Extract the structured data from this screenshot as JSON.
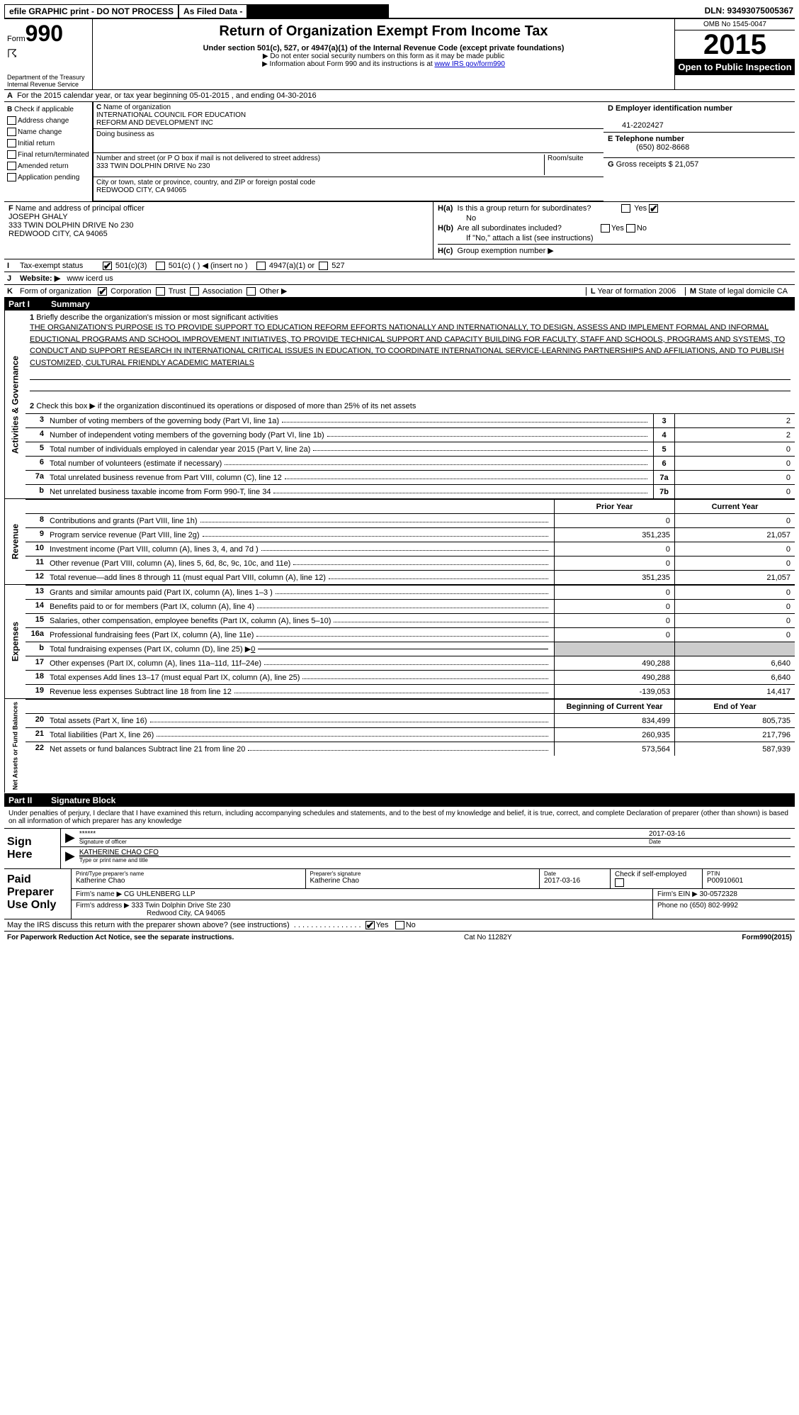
{
  "top": {
    "efile": "efile GRAPHIC print - DO NOT PROCESS",
    "asfiled": "As Filed Data -",
    "dln": "DLN: 93493075005367"
  },
  "header": {
    "form_prefix": "Form",
    "form_num": "990",
    "dept": "Department of the Treasury",
    "irs": "Internal Revenue Service",
    "title": "Return of Organization Exempt From Income Tax",
    "subtitle": "Under section 501(c), 527, or 4947(a)(1) of the Internal Revenue Code (except private foundations)",
    "note1": "▶ Do not enter social security numbers on this form as it may be made public",
    "note2": "▶ Information about Form 990 and its instructions is at ",
    "note2_link": "www IRS gov/form990",
    "omb": "OMB No 1545-0047",
    "year": "2015",
    "open": "Open to Public Inspection"
  },
  "rowA": {
    "prefix": "A",
    "text": "For the 2015 calendar year, or tax year beginning 05-01-2015     , and ending 04-30-2016"
  },
  "colB": {
    "label": "B",
    "check": "Check if applicable",
    "addr": "Address change",
    "name": "Name change",
    "initial": "Initial return",
    "final": "Final return/terminated",
    "amended": "Amended return",
    "pending": "Application pending"
  },
  "colC": {
    "c_label": "C",
    "name_label": "Name of organization",
    "name1": "INTERNATIONAL COUNCIL FOR EDUCATION",
    "name2": "REFORM AND DEVELOPMENT INC",
    "dba_label": "Doing business as",
    "addr_label": "Number and street (or P O  box if mail is not delivered to street address)",
    "room_label": "Room/suite",
    "addr": "333 TWIN DOLPHIN DRIVE No 230",
    "city_label": "City or town, state or province, country, and ZIP or foreign postal code",
    "city": "REDWOOD CITY, CA  94065"
  },
  "colD": {
    "d_label": "D Employer identification number",
    "ein": "41-2202427",
    "e_label": "E Telephone number",
    "phone": "(650) 802-8668",
    "g_label": "G",
    "g_text": "Gross receipts $ 21,057"
  },
  "colF": {
    "label": "F",
    "text": "Name and address of principal officer",
    "name": "JOSEPH GHALY",
    "addr1": "333 TWIN DOLPHIN DRIVE No 230",
    "addr2": "REDWOOD CITY, CA  94065"
  },
  "colH": {
    "ha": "H(a)",
    "ha_text": "Is this a group return for subordinates?",
    "ha_no": "No",
    "hb": "H(b)",
    "hb_text": "Are all subordinates included?",
    "hb_note": "If \"No,\" attach a list  (see instructions)",
    "hc": "H(c)",
    "hc_text": "Group exemption number ▶",
    "yes": "Yes",
    "no": "No"
  },
  "rowI": {
    "label": "I",
    "text": "Tax-exempt status",
    "opt1": "501(c)(3)",
    "opt2": "501(c) (   ) ◀ (insert no )",
    "opt3": "4947(a)(1) or",
    "opt4": "527"
  },
  "rowJ": {
    "label": "J",
    "text": "Website: ▶",
    "val": "www icerd us"
  },
  "rowK": {
    "label": "K",
    "text": "Form of organization",
    "corp": "Corporation",
    "trust": "Trust",
    "assoc": "Association",
    "other": "Other ▶",
    "l_label": "L",
    "l_text": "Year of formation  2006",
    "m_label": "M",
    "m_text": "State of legal domicile  CA"
  },
  "part1": {
    "num": "Part I",
    "title": "Summary"
  },
  "activities": {
    "vtab": "Activities & Governance",
    "line1_label": "1",
    "line1_text": "Briefly describe the organization's mission or most significant activities",
    "mission": "THE ORGANIZATION'S PURPOSE IS TO PROVIDE SUPPORT TO EDUCATION REFORM EFFORTS NATIONALLY AND INTERNATIONALLY, TO DESIGN, ASSESS AND IMPLEMENT FORMAL AND INFORMAL EDUCTIONAL PROGRAMS AND SCHOOL IMPROVEMENT INITIATIVES, TO PROVIDE TECHNICAL SUPPORT AND CAPACITY BUILDING FOR FACULTY, STAFF AND SCHOOLS, PROGRAMS AND SYSTEMS, TO CONDUCT AND SUPPORT RESEARCH IN INTERNATIONAL CRITICAL ISSUES IN EDUCATION, TO COORDINATE INTERNATIONAL SERVICE-LEARNING PARTNERSHIPS AND AFFILIATIONS, AND TO PUBLISH CUSTOMIZED, CULTURAL FRIENDLY ACADEMIC MATERIALS",
    "line2_label": "2",
    "line2_text": "Check this box ▶     if the organization discontinued its operations or disposed of more than 25% of its net assets",
    "rows": [
      {
        "n": "3",
        "desc": "Number of voting members of the governing body (Part VI, line 1a)",
        "key": "3",
        "val": "2"
      },
      {
        "n": "4",
        "desc": "Number of independent voting members of the governing body (Part VI, line 1b)",
        "key": "4",
        "val": "2"
      },
      {
        "n": "5",
        "desc": "Total number of individuals employed in calendar year 2015 (Part V, line 2a)",
        "key": "5",
        "val": "0"
      },
      {
        "n": "6",
        "desc": "Total number of volunteers (estimate if necessary)",
        "key": "6",
        "val": "0"
      },
      {
        "n": "7a",
        "desc": "Total unrelated business revenue from Part VIII, column (C), line 12",
        "key": "7a",
        "val": "0"
      },
      {
        "n": "b",
        "desc": "Net unrelated business taxable income from Form 990-T, line 34",
        "key": "7b",
        "val": "0"
      }
    ]
  },
  "revenue": {
    "vtab": "Revenue",
    "header_prior": "Prior Year",
    "header_current": "Current Year",
    "rows": [
      {
        "n": "8",
        "desc": "Contributions and grants (Part VIII, line 1h)",
        "prior": "0",
        "curr": "0"
      },
      {
        "n": "9",
        "desc": "Program service revenue (Part VIII, line 2g)",
        "prior": "351,235",
        "curr": "21,057"
      },
      {
        "n": "10",
        "desc": "Investment income (Part VIII, column (A), lines 3, 4, and 7d )",
        "prior": "0",
        "curr": "0"
      },
      {
        "n": "11",
        "desc": "Other revenue (Part VIII, column (A), lines 5, 6d, 8c, 9c, 10c, and 11e)",
        "prior": "0",
        "curr": "0"
      },
      {
        "n": "12",
        "desc": "Total revenue—add lines 8 through 11 (must equal Part VIII, column (A), line 12)",
        "prior": "351,235",
        "curr": "21,057"
      }
    ]
  },
  "expenses": {
    "vtab": "Expenses",
    "rows": [
      {
        "n": "13",
        "desc": "Grants and similar amounts paid (Part IX, column (A), lines 1–3 )",
        "prior": "0",
        "curr": "0"
      },
      {
        "n": "14",
        "desc": "Benefits paid to or for members (Part IX, column (A), line 4)",
        "prior": "0",
        "curr": "0"
      },
      {
        "n": "15",
        "desc": "Salaries, other compensation, employee benefits (Part IX, column (A), lines 5–10)",
        "prior": "0",
        "curr": "0"
      },
      {
        "n": "16a",
        "desc": "Professional fundraising fees (Part IX, column (A), line 11e)",
        "prior": "0",
        "curr": "0"
      }
    ],
    "row_b": {
      "n": "b",
      "desc": "Total fundraising expenses (Part IX, column (D), line 25) ▶",
      "val": "0"
    },
    "rows2": [
      {
        "n": "17",
        "desc": "Other expenses (Part IX, column (A), lines 11a–11d, 11f–24e)",
        "prior": "490,288",
        "curr": "6,640"
      },
      {
        "n": "18",
        "desc": "Total expenses  Add lines 13–17 (must equal Part IX, column (A), line 25)",
        "prior": "490,288",
        "curr": "6,640"
      },
      {
        "n": "19",
        "desc": "Revenue less expenses  Subtract line 18 from line 12",
        "prior": "-139,053",
        "curr": "14,417"
      }
    ]
  },
  "netassets": {
    "vtab": "Net Assets or Fund Balances",
    "header_begin": "Beginning of Current Year",
    "header_end": "End of Year",
    "rows": [
      {
        "n": "20",
        "desc": "Total assets (Part X, line 16)",
        "prior": "834,499",
        "curr": "805,735"
      },
      {
        "n": "21",
        "desc": "Total liabilities (Part X, line 26)",
        "prior": "260,935",
        "curr": "217,796"
      },
      {
        "n": "22",
        "desc": "Net assets or fund balances  Subtract line 21 from line 20",
        "prior": "573,564",
        "curr": "587,939"
      }
    ]
  },
  "part2": {
    "num": "Part II",
    "title": "Signature Block"
  },
  "sig": {
    "perjury": "Under penalties of perjury, I declare that I have examined this return, including accompanying schedules and statements, and to the best of my knowledge and belief, it is true, correct, and complete  Declaration of preparer (other than shown) is based on all information of which preparer has any knowledge",
    "sign_here": "Sign Here",
    "stars": "******",
    "sig_label": "Signature of officer",
    "date": "2017-03-16",
    "date_label": "Date",
    "name": "KATHERINE CHAO CFO",
    "name_label": "Type or print name and title"
  },
  "preparer": {
    "label": "Paid Preparer Use Only",
    "name_lbl": "Print/Type preparer's name",
    "name": "Katherine Chao",
    "sig_lbl": "Preparer's signature",
    "sig": "Katherine Chao",
    "date_lbl": "Date",
    "date": "2017-03-16",
    "check_lbl": "Check         if self-employed",
    "ptin_lbl": "PTIN",
    "ptin": "P00910601",
    "firm_lbl": "Firm's name      ▶",
    "firm": "CG UHLENBERG LLP",
    "ein_lbl": "Firm's EIN ▶",
    "ein": "30-0572328",
    "addr_lbl": "Firm's address ▶",
    "addr1": "333 Twin Dolphin Drive Ste 230",
    "addr2": "Redwood City, CA  94065",
    "phone_lbl": "Phone no",
    "phone": "(650) 802-9992"
  },
  "discuss": {
    "text": "May the IRS discuss this return with the preparer shown above? (see instructions)",
    "yes": "Yes",
    "no": "No"
  },
  "footer": {
    "left": "For Paperwork Reduction Act Notice, see the separate instructions.",
    "mid": "Cat No  11282Y",
    "right": "Form 990 (2015)"
  }
}
